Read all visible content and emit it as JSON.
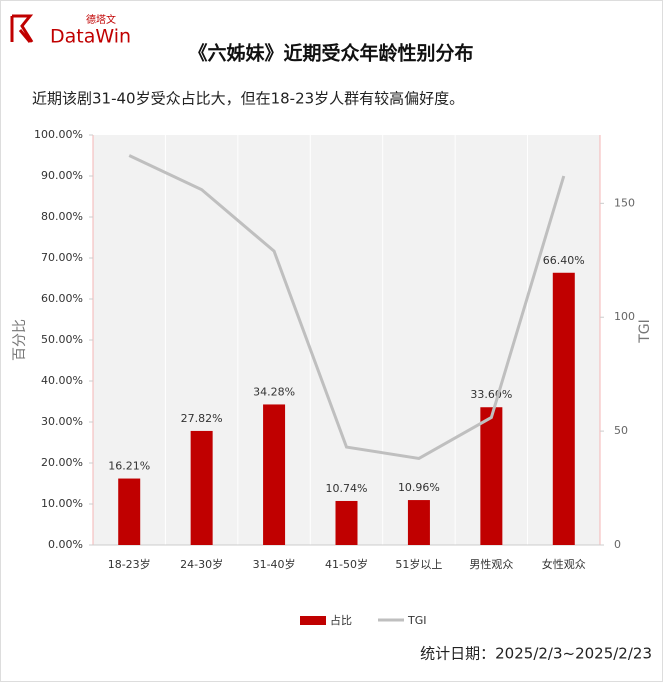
{
  "logo": {
    "brand": "DataWin",
    "brand_cn": "德塔文"
  },
  "chart_data": {
    "type": "bar",
    "title": "《六姊妹》近期受众年龄性别分布",
    "subtitle": "近期该剧31-40岁受众占比大，但在18-23岁人群有较高偏好度。",
    "y_label": "百分比",
    "y2_label": "TGI",
    "categories": [
      "18-23岁",
      "24-30岁",
      "31-40岁",
      "41-50岁",
      "51岁以上",
      "男性观众",
      "女性观众"
    ],
    "series": [
      {
        "name": "占比",
        "type": "bar",
        "color": "#c00000",
        "values": [
          16.21,
          27.82,
          34.28,
          10.74,
          10.96,
          33.6,
          66.4
        ],
        "value_labels": [
          "16.21%",
          "27.82%",
          "34.28%",
          "10.74%",
          "10.96%",
          "33.60%",
          "66.40%"
        ]
      },
      {
        "name": "TGI",
        "type": "line",
        "axis": "y2",
        "color": "#bfbfbf",
        "values": [
          171,
          156,
          129,
          43,
          38,
          56,
          162
        ]
      }
    ],
    "ylim": [
      0,
      100
    ],
    "yticks": [
      {
        "value": 0,
        "label": "0.00%"
      },
      {
        "value": 10,
        "label": "10.00%"
      },
      {
        "value": 20,
        "label": "20.00%"
      },
      {
        "value": 30,
        "label": "30.00%"
      },
      {
        "value": 40,
        "label": "40.00%"
      },
      {
        "value": 50,
        "label": "50.00%"
      },
      {
        "value": 60,
        "label": "60.00%"
      },
      {
        "value": 70,
        "label": "70.00%"
      },
      {
        "value": 80,
        "label": "80.00%"
      },
      {
        "value": 90,
        "label": "90.00%"
      },
      {
        "value": 100,
        "label": "100.00%"
      }
    ],
    "y2lim": [
      0,
      180
    ],
    "y2ticks": [
      0,
      50,
      100,
      150
    ],
    "legend": "bottom"
  },
  "footer": "统计日期：2025/2/3~2025/2/23"
}
